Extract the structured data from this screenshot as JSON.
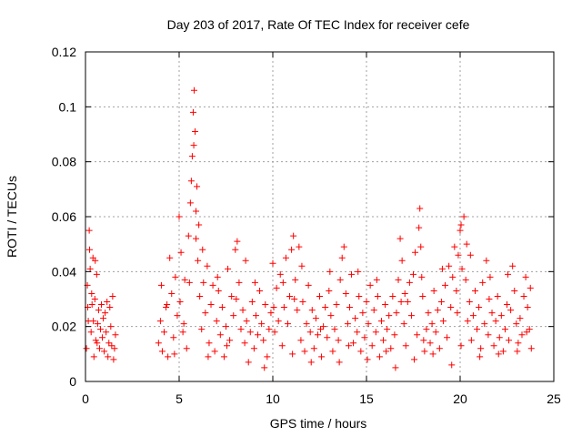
{
  "chart_data": {
    "type": "scatter",
    "title": "Day 203 of 2017, Rate Of TEC Index for receiver cefe",
    "xlabel": "GPS time / hours",
    "ylabel": "ROTI / TECUs",
    "xlim": [
      0,
      25
    ],
    "ylim": [
      0,
      0.12
    ],
    "x_ticks": [
      "0",
      "5",
      "10",
      "15",
      "20",
      "25"
    ],
    "y_ticks": [
      "0",
      "0.02",
      "0.04",
      "0.06",
      "0.08",
      "0.1",
      "0.12"
    ],
    "x_tick_values": [
      0,
      5,
      10,
      15,
      20,
      25
    ],
    "y_tick_values": [
      0,
      0.02,
      0.04,
      0.06,
      0.08,
      0.1,
      0.12
    ],
    "grid": true,
    "marker": "+",
    "color": "#ff0000",
    "series": [
      {
        "points": [
          [
            0.05,
            0.012
          ],
          [
            0.1,
            0.035
          ],
          [
            0.15,
            0.022
          ],
          [
            0.2,
            0.055
          ],
          [
            0.25,
            0.041
          ],
          [
            0.3,
            0.018
          ],
          [
            0.35,
            0.028
          ],
          [
            0.4,
            0.045
          ],
          [
            0.45,
            0.009
          ],
          [
            0.5,
            0.03
          ],
          [
            0.55,
            0.015
          ],
          [
            0.6,
            0.039
          ],
          [
            0.65,
            0.021
          ],
          [
            0.7,
            0.026
          ],
          [
            0.75,
            0.012
          ],
          [
            0.8,
            0.019
          ],
          [
            0.85,
            0.028
          ],
          [
            0.9,
            0.016
          ],
          [
            0.95,
            0.023
          ],
          [
            1.0,
            0.011
          ],
          [
            1.05,
            0.025
          ],
          [
            1.1,
            0.018
          ],
          [
            1.15,
            0.029
          ],
          [
            1.2,
            0.009
          ],
          [
            1.25,
            0.014
          ],
          [
            1.3,
            0.027
          ],
          [
            1.35,
            0.02
          ],
          [
            1.4,
            0.013
          ],
          [
            1.45,
            0.031
          ],
          [
            1.5,
            0.008
          ],
          [
            1.55,
            0.012
          ],
          [
            1.6,
            0.017
          ],
          [
            0.22,
            0.048
          ],
          [
            0.33,
            0.032
          ],
          [
            0.52,
            0.044
          ],
          [
            0.12,
            0.027
          ],
          [
            0.42,
            0.022
          ],
          [
            0.62,
            0.014
          ],
          [
            3.9,
            0.014
          ],
          [
            4.0,
            0.022
          ],
          [
            4.1,
            0.011
          ],
          [
            4.2,
            0.018
          ],
          [
            4.3,
            0.027
          ],
          [
            4.4,
            0.009
          ],
          [
            4.5,
            0.045
          ],
          [
            4.6,
            0.032
          ],
          [
            4.7,
            0.016
          ],
          [
            4.8,
            0.038
          ],
          [
            4.9,
            0.024
          ],
          [
            5.0,
            0.06
          ],
          [
            5.05,
            0.029
          ],
          [
            5.1,
            0.047
          ],
          [
            5.2,
            0.018
          ],
          [
            5.3,
            0.037
          ],
          [
            5.4,
            0.012
          ],
          [
            5.5,
            0.053
          ],
          [
            5.6,
            0.065
          ],
          [
            5.65,
            0.073
          ],
          [
            5.7,
            0.082
          ],
          [
            5.75,
            0.098
          ],
          [
            5.8,
            0.106
          ],
          [
            5.85,
            0.091
          ],
          [
            5.9,
            0.062
          ],
          [
            5.95,
            0.071
          ],
          [
            6.0,
            0.044
          ],
          [
            6.1,
            0.031
          ],
          [
            6.2,
            0.019
          ],
          [
            6.3,
            0.036
          ],
          [
            6.4,
            0.025
          ],
          [
            6.5,
            0.042
          ],
          [
            6.6,
            0.014
          ],
          [
            6.7,
            0.028
          ],
          [
            6.8,
            0.035
          ],
          [
            6.9,
            0.011
          ],
          [
            7.0,
            0.022
          ],
          [
            7.1,
            0.033
          ],
          [
            7.2,
            0.017
          ],
          [
            7.3,
            0.027
          ],
          [
            7.4,
            0.009
          ],
          [
            7.5,
            0.02
          ],
          [
            7.6,
            0.041
          ],
          [
            7.7,
            0.015
          ],
          [
            7.8,
            0.031
          ],
          [
            7.9,
            0.024
          ],
          [
            8.0,
            0.048
          ],
          [
            8.1,
            0.051
          ],
          [
            8.2,
            0.036
          ],
          [
            8.3,
            0.019
          ],
          [
            8.4,
            0.026
          ],
          [
            8.5,
            0.014
          ],
          [
            8.6,
            0.022
          ],
          [
            8.7,
            0.007
          ],
          [
            8.8,
            0.018
          ],
          [
            8.9,
            0.029
          ],
          [
            9.0,
            0.012
          ],
          [
            9.1,
            0.024
          ],
          [
            9.2,
            0.017
          ],
          [
            9.3,
            0.033
          ],
          [
            9.4,
            0.021
          ],
          [
            9.5,
            0.015
          ],
          [
            9.6,
            0.028
          ],
          [
            9.7,
            0.009
          ],
          [
            9.8,
            0.019
          ],
          [
            9.9,
            0.025
          ],
          [
            10.0,
            0.043
          ],
          [
            10.1,
            0.018
          ],
          [
            10.2,
            0.034
          ],
          [
            10.3,
            0.022
          ],
          [
            10.4,
            0.039
          ],
          [
            10.5,
            0.013
          ],
          [
            10.6,
            0.027
          ],
          [
            10.7,
            0.045
          ],
          [
            10.8,
            0.021
          ],
          [
            10.9,
            0.031
          ],
          [
            11.0,
            0.048
          ],
          [
            11.1,
            0.053
          ],
          [
            11.2,
            0.037
          ],
          [
            11.3,
            0.026
          ],
          [
            11.4,
            0.049
          ],
          [
            11.5,
            0.015
          ],
          [
            11.6,
            0.029
          ],
          [
            11.7,
            0.011
          ],
          [
            11.8,
            0.021
          ],
          [
            11.9,
            0.035
          ],
          [
            12.0,
            0.018
          ],
          [
            12.1,
            0.026
          ],
          [
            12.2,
            0.012
          ],
          [
            12.3,
            0.023
          ],
          [
            12.4,
            0.017
          ],
          [
            12.5,
            0.031
          ],
          [
            12.6,
            0.009
          ],
          [
            12.7,
            0.02
          ],
          [
            12.8,
            0.027
          ],
          [
            12.9,
            0.016
          ],
          [
            13.0,
            0.033
          ],
          [
            13.1,
            0.024
          ],
          [
            13.2,
            0.011
          ],
          [
            13.3,
            0.019
          ],
          [
            13.4,
            0.028
          ],
          [
            13.5,
            0.015
          ],
          [
            13.6,
            0.037
          ],
          [
            13.7,
            0.045
          ],
          [
            13.8,
            0.049
          ],
          [
            13.9,
            0.032
          ],
          [
            14.0,
            0.021
          ],
          [
            14.1,
            0.027
          ],
          [
            14.2,
            0.039
          ],
          [
            14.3,
            0.014
          ],
          [
            14.4,
            0.023
          ],
          [
            14.5,
            0.018
          ],
          [
            14.6,
            0.031
          ],
          [
            14.7,
            0.011
          ],
          [
            14.8,
            0.025
          ],
          [
            14.9,
            0.016
          ],
          [
            15.0,
            0.029
          ],
          [
            15.1,
            0.021
          ],
          [
            15.2,
            0.035
          ],
          [
            15.3,
            0.013
          ],
          [
            15.4,
            0.026
          ],
          [
            15.5,
            0.018
          ],
          [
            15.6,
            0.031
          ],
          [
            15.7,
            0.009
          ],
          [
            15.8,
            0.022
          ],
          [
            15.9,
            0.015
          ],
          [
            16.0,
            0.028
          ],
          [
            16.1,
            0.019
          ],
          [
            16.2,
            0.024
          ],
          [
            16.3,
            0.012
          ],
          [
            16.4,
            0.031
          ],
          [
            16.5,
            0.017
          ],
          [
            16.6,
            0.025
          ],
          [
            16.7,
            0.037
          ],
          [
            16.8,
            0.052
          ],
          [
            16.9,
            0.044
          ],
          [
            17.0,
            0.021
          ],
          [
            17.1,
            0.013
          ],
          [
            17.2,
            0.029
          ],
          [
            17.3,
            0.036
          ],
          [
            17.4,
            0.024
          ],
          [
            17.5,
            0.039
          ],
          [
            17.6,
            0.047
          ],
          [
            17.7,
            0.017
          ],
          [
            17.8,
            0.056
          ],
          [
            17.85,
            0.063
          ],
          [
            17.9,
            0.049
          ],
          [
            18.0,
            0.031
          ],
          [
            18.1,
            0.011
          ],
          [
            18.2,
            0.019
          ],
          [
            18.3,
            0.025
          ],
          [
            18.4,
            0.014
          ],
          [
            18.5,
            0.021
          ],
          [
            18.6,
            0.033
          ],
          [
            18.7,
            0.018
          ],
          [
            18.8,
            0.026
          ],
          [
            18.9,
            0.012
          ],
          [
            19.0,
            0.029
          ],
          [
            19.1,
            0.022
          ],
          [
            19.2,
            0.035
          ],
          [
            19.3,
            0.016
          ],
          [
            19.4,
            0.042
          ],
          [
            19.5,
            0.027
          ],
          [
            19.6,
            0.038
          ],
          [
            19.7,
            0.049
          ],
          [
            19.8,
            0.033
          ],
          [
            19.9,
            0.046
          ],
          [
            20.0,
            0.055
          ],
          [
            20.05,
            0.057
          ],
          [
            20.1,
            0.041
          ],
          [
            20.2,
            0.06
          ],
          [
            20.3,
            0.037
          ],
          [
            20.4,
            0.022
          ],
          [
            20.5,
            0.029
          ],
          [
            20.6,
            0.015
          ],
          [
            20.7,
            0.024
          ],
          [
            20.8,
            0.033
          ],
          [
            20.9,
            0.019
          ],
          [
            21.0,
            0.027
          ],
          [
            21.1,
            0.012
          ],
          [
            21.2,
            0.036
          ],
          [
            21.3,
            0.021
          ],
          [
            21.4,
            0.044
          ],
          [
            21.5,
            0.017
          ],
          [
            21.6,
            0.038
          ],
          [
            21.7,
            0.025
          ],
          [
            21.8,
            0.013
          ],
          [
            21.9,
            0.022
          ],
          [
            22.0,
            0.031
          ],
          [
            22.1,
            0.016
          ],
          [
            22.2,
            0.024
          ],
          [
            22.3,
            0.011
          ],
          [
            22.4,
            0.019
          ],
          [
            22.5,
            0.028
          ],
          [
            22.6,
            0.015
          ],
          [
            22.7,
            0.026
          ],
          [
            22.8,
            0.042
          ],
          [
            22.9,
            0.033
          ],
          [
            23.0,
            0.021
          ],
          [
            23.1,
            0.014
          ],
          [
            23.2,
            0.023
          ],
          [
            23.3,
            0.017
          ],
          [
            23.4,
            0.031
          ],
          [
            23.5,
            0.038
          ],
          [
            23.6,
            0.027
          ],
          [
            23.7,
            0.019
          ],
          [
            23.8,
            0.012
          ],
          [
            4.05,
            0.035
          ],
          [
            4.35,
            0.028
          ],
          [
            4.75,
            0.01
          ],
          [
            5.25,
            0.021
          ],
          [
            5.55,
            0.036
          ],
          [
            6.25,
            0.048
          ],
          [
            6.55,
            0.009
          ],
          [
            7.05,
            0.038
          ],
          [
            7.55,
            0.013
          ],
          [
            8.05,
            0.03
          ],
          [
            8.55,
            0.044
          ],
          [
            9.05,
            0.036
          ],
          [
            9.55,
            0.005
          ],
          [
            10.05,
            0.027
          ],
          [
            10.55,
            0.036
          ],
          [
            11.05,
            0.01
          ],
          [
            11.55,
            0.042
          ],
          [
            12.05,
            0.007
          ],
          [
            12.55,
            0.019
          ],
          [
            13.05,
            0.04
          ],
          [
            13.55,
            0.007
          ],
          [
            14.05,
            0.013
          ],
          [
            14.55,
            0.04
          ],
          [
            15.05,
            0.008
          ],
          [
            15.55,
            0.037
          ],
          [
            16.05,
            0.011
          ],
          [
            16.55,
            0.005
          ],
          [
            17.05,
            0.032
          ],
          [
            17.55,
            0.008
          ],
          [
            18.05,
            0.015
          ],
          [
            18.55,
            0.01
          ],
          [
            19.05,
            0.041
          ],
          [
            19.55,
            0.006
          ],
          [
            20.05,
            0.013
          ],
          [
            20.55,
            0.046
          ],
          [
            21.05,
            0.009
          ],
          [
            21.55,
            0.03
          ],
          [
            22.05,
            0.01
          ],
          [
            22.55,
            0.039
          ],
          [
            23.05,
            0.011
          ],
          [
            23.55,
            0.018
          ],
          [
            23.75,
            0.034
          ],
          [
            19.85,
            0.025
          ],
          [
            20.35,
            0.05
          ],
          [
            17.95,
            0.038
          ],
          [
            16.85,
            0.029
          ],
          [
            11.15,
            0.03
          ],
          [
            5.9,
            0.052
          ],
          [
            6.05,
            0.057
          ],
          [
            5.78,
            0.086
          ]
        ]
      }
    ]
  }
}
